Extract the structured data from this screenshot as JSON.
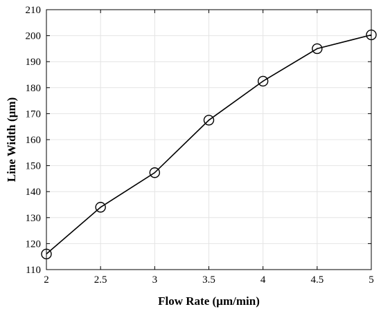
{
  "chart_data": {
    "type": "line",
    "title": "",
    "xlabel": "Flow Rate (µm/min)",
    "ylabel": "Line Width (µm)",
    "xlim": [
      2,
      5
    ],
    "ylim": [
      110,
      210
    ],
    "xticks": [
      "2",
      "2.5",
      "3",
      "3.5",
      "4",
      "4.5",
      "5"
    ],
    "yticks": [
      "110",
      "120",
      "130",
      "140",
      "150",
      "160",
      "170",
      "180",
      "190",
      "200",
      "210"
    ],
    "grid": true,
    "legend": "none",
    "marker": "open-circle",
    "series": [
      {
        "x": [
          2,
          2.5,
          3,
          3.5,
          4,
          4.5,
          5
        ],
        "y": [
          116,
          134,
          147.3,
          167.5,
          182.5,
          195,
          200.3
        ],
        "color": "#000000"
      }
    ]
  }
}
